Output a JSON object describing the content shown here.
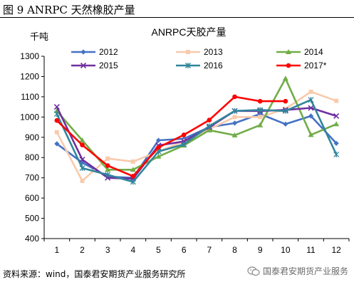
{
  "figure_title": "图 9 ANRPC 天然橡胶产量",
  "source_note": "资料来源：wind，国泰君安期货产业服务研究所",
  "watermark": "国泰君安期货产业服务",
  "watermark_icon": "wechat-icon",
  "chart_data": {
    "type": "line",
    "title": "ANRPC天胶产量",
    "ylabel": "千吨",
    "xlabel": "",
    "x": [
      1,
      2,
      3,
      4,
      5,
      6,
      7,
      8,
      9,
      10,
      11,
      12
    ],
    "ylim": [
      400,
      1300
    ],
    "yticks": [
      400,
      500,
      600,
      700,
      800,
      900,
      1000,
      1100,
      1200,
      1300
    ],
    "grid": false,
    "legend": "top",
    "series": [
      {
        "name": "2012",
        "color": "#4472C4",
        "marker": "diamond",
        "values": [
          868,
          775,
          706,
          700,
          885,
          893,
          950,
          970,
          1015,
          965,
          1005,
          870
        ]
      },
      {
        "name": "2013",
        "color": "#F8CBAD",
        "marker": "square",
        "values": [
          925,
          685,
          795,
          780,
          830,
          880,
          940,
          1000,
          1000,
          1040,
          1125,
          1080
        ]
      },
      {
        "name": "2014",
        "color": "#70AD47",
        "marker": "triangle",
        "values": [
          1030,
          885,
          740,
          740,
          805,
          860,
          935,
          910,
          960,
          1190,
          912,
          965
        ]
      },
      {
        "name": "2015",
        "color": "#7030A0",
        "marker": "x",
        "values": [
          1050,
          790,
          700,
          695,
          860,
          880,
          950,
          1030,
          1030,
          1035,
          1045,
          1005
        ]
      },
      {
        "name": "2016",
        "color": "#31859C",
        "marker": "star",
        "values": [
          1015,
          748,
          715,
          680,
          830,
          865,
          955,
          1030,
          1035,
          1030,
          1085,
          815
        ]
      },
      {
        "name": "2017*",
        "color": "#FF0000",
        "marker": "circle",
        "values": [
          983,
          862,
          760,
          708,
          850,
          912,
          985,
          1100,
          1078,
          1078,
          null,
          null
        ]
      }
    ]
  }
}
